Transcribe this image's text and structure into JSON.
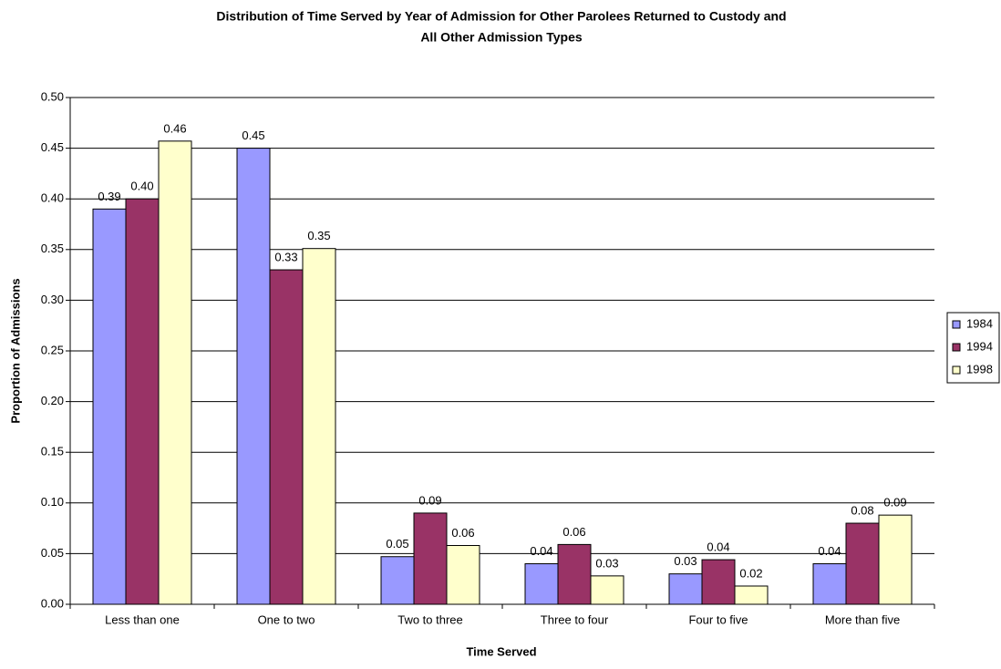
{
  "chart_data": {
    "type": "bar",
    "title": [
      "Distribution of Time Served by Year of Admission for Other Parolees Returned to Custody and",
      "All Other Admission Types"
    ],
    "x_label": "Time Served",
    "y_label": "Proportion of Admissions",
    "categories": [
      "Less than one",
      "One to two",
      "Two to three",
      "Three to four",
      "Four to five",
      "More than five"
    ],
    "series": [
      {
        "name": "1984",
        "color": "#9999ff",
        "values": [
          0.39,
          0.45,
          0.047,
          0.04,
          0.03,
          0.04
        ],
        "value_labels": [
          "0.39",
          "0.45",
          "0.05",
          "0.04",
          "0.03",
          "0.04"
        ]
      },
      {
        "name": "1994",
        "color": "#993366",
        "values": [
          0.4,
          0.33,
          0.09,
          0.059,
          0.044,
          0.08
        ],
        "value_labels": [
          "0.40",
          "0.33",
          "0.09",
          "0.06",
          "0.04",
          "0.08"
        ]
      },
      {
        "name": "1998",
        "color": "#ffffcc",
        "values": [
          0.457,
          0.351,
          0.058,
          0.028,
          0.018,
          0.088
        ],
        "value_labels": [
          "0.46",
          "0.35",
          "0.06",
          "0.03",
          "0.02",
          "0.09"
        ]
      }
    ],
    "ylim": [
      0,
      0.5
    ],
    "yticks": [
      {
        "value": 0,
        "label": "0.00"
      },
      {
        "value": 0.05,
        "label": "0.05"
      },
      {
        "value": 0.1,
        "label": "0.10"
      },
      {
        "value": 0.15,
        "label": "0.15"
      },
      {
        "value": 0.2,
        "label": "0.20"
      },
      {
        "value": 0.25,
        "label": "0.25"
      },
      {
        "value": 0.3,
        "label": "0.30"
      },
      {
        "value": 0.35,
        "label": "0.35"
      },
      {
        "value": 0.4,
        "label": "0.40"
      },
      {
        "value": 0.45,
        "label": "0.45"
      },
      {
        "value": 0.5,
        "label": "0.50"
      }
    ],
    "grid": true,
    "legend": "right"
  }
}
